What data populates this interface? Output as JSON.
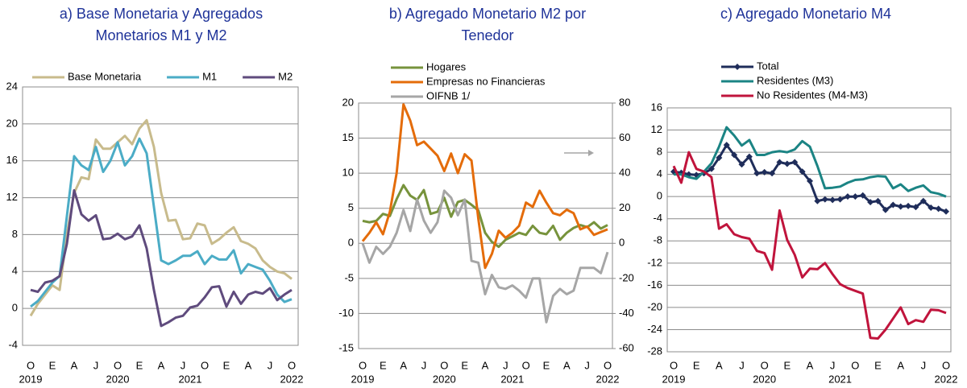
{
  "chart_data": [
    {
      "type": "line",
      "title": [
        "a) Base Monetaria y Agregados",
        "Monetarios M1 y M2"
      ],
      "categories": [
        "O",
        null,
        null,
        "E",
        null,
        null,
        "A",
        null,
        null,
        "J",
        null,
        null,
        "O",
        null,
        null,
        "E",
        null,
        null,
        "A",
        null,
        null,
        "J",
        null,
        null,
        "O",
        null,
        null,
        "E",
        null,
        null,
        "A",
        null,
        null,
        "J",
        null,
        null,
        "O"
      ],
      "years": [
        "2019",
        "2020",
        "2021",
        "2022"
      ],
      "ylim": [
        -4,
        24
      ],
      "yticks": [
        -4,
        0,
        4,
        8,
        12,
        16,
        20,
        24
      ],
      "grid": true,
      "legend": "top",
      "series": [
        {
          "name": "Base Monetaria",
          "color": "#c8bb8c",
          "values": [
            -0.8,
            0.5,
            1.5,
            2.5,
            2.0,
            8,
            12.5,
            14.2,
            14.0,
            18.3,
            17.3,
            17.3,
            18.0,
            18.7,
            17.8,
            19.5,
            20.4,
            17.5,
            12.5,
            9.5,
            9.6,
            7.5,
            7.6,
            9.2,
            9.0,
            7.0,
            7.5,
            8.2,
            8.8,
            7.3,
            7.0,
            6.5,
            5.2,
            4.5,
            4.0,
            3.8,
            3.2
          ]
        },
        {
          "name": "M1",
          "color": "#4bacc6",
          "values": [
            0.2,
            0.8,
            1.8,
            2.8,
            3.5,
            10,
            16.5,
            15.5,
            15,
            17.5,
            14.8,
            16,
            18,
            15.5,
            16.5,
            18.4,
            16.8,
            11,
            5.2,
            4.8,
            5.2,
            5.7,
            5.7,
            6.2,
            4.8,
            5.7,
            5.3,
            5.3,
            6.3,
            3.8,
            4.8,
            4.5,
            4.2,
            3.0,
            1.5,
            0.7,
            1.0
          ]
        },
        {
          "name": "M2",
          "color": "#5f4b7d",
          "values": [
            2.0,
            1.8,
            2.8,
            3.0,
            3.5,
            7,
            12.8,
            10.2,
            9.5,
            10.1,
            7.5,
            7.6,
            8.1,
            7.5,
            7.8,
            9.0,
            6.5,
            2.0,
            -1.9,
            -1.5,
            -1.0,
            -0.8,
            0.1,
            0.3,
            1.2,
            2.3,
            2.4,
            0.2,
            1.8,
            0.5,
            1.5,
            1.8,
            1.6,
            2.2,
            0.9,
            1.5,
            2.0
          ]
        }
      ]
    },
    {
      "type": "line",
      "title": [
        "b) Agregado Monetario M2 por",
        "Tenedor"
      ],
      "categories": [
        "O",
        null,
        null,
        "E",
        null,
        null,
        "A",
        null,
        null,
        "J",
        null,
        null,
        "O",
        null,
        null,
        "E",
        null,
        null,
        "A",
        null,
        null,
        "J",
        null,
        null,
        "O",
        null,
        null,
        "E",
        null,
        null,
        "A",
        null,
        null,
        "J",
        null,
        null,
        "O"
      ],
      "years": [
        "2019",
        "2020",
        "2021",
        "2022"
      ],
      "ylim": [
        -15,
        20
      ],
      "yticks": [
        -15,
        -10,
        -5,
        0,
        5,
        10,
        15,
        20
      ],
      "y2lim": [
        -60,
        80
      ],
      "y2ticks": [
        -60,
        -40,
        -20,
        0,
        20,
        40,
        60,
        80
      ],
      "grid": true,
      "legend": "top-left",
      "series": [
        {
          "name": "Hogares",
          "color": "#77933c",
          "values": [
            3.2,
            3.0,
            3.2,
            4.2,
            3.9,
            6.3,
            8.3,
            6.8,
            6.2,
            7.6,
            4.2,
            4.5,
            6.5,
            3.8,
            5.9,
            6.2,
            5.5,
            4.7,
            1.5,
            0.2,
            -0.5,
            0.5,
            1.0,
            1.5,
            1.2,
            2.5,
            1.5,
            1.3,
            2.5,
            0.5,
            1.5,
            2.2,
            2.6,
            2.3,
            3.0,
            2.1,
            2.6
          ]
        },
        {
          "name": "Empresas no Financieras",
          "color": "#e46c0a",
          "values": [
            0.3,
            1.5,
            3.0,
            1.3,
            4.5,
            10,
            19.8,
            17.5,
            14.0,
            14.5,
            13.5,
            12.5,
            10.3,
            12.8,
            10.0,
            12.7,
            11.8,
            3.5,
            -3.5,
            -1.5,
            1.8,
            0.8,
            1.5,
            2.5,
            5.8,
            5.2,
            7.5,
            5.8,
            4.3,
            4.0,
            4.8,
            4.3,
            2.0,
            2.4,
            1.2,
            1.6,
            2.0
          ]
        },
        {
          "name": "OIFNB 1/",
          "color": "#a6a6a6",
          "axis": "y2",
          "values": [
            0,
            -11,
            -2,
            -6,
            -2,
            6,
            19,
            7,
            25,
            13,
            6,
            12,
            30,
            26,
            16,
            25,
            -10,
            -11,
            -29,
            -18,
            -25,
            -26,
            -24,
            -27,
            -31,
            -20,
            -20,
            -45,
            -30,
            -26,
            -29,
            -27,
            -14,
            -14,
            -14,
            -17,
            -5
          ]
        }
      ]
    },
    {
      "type": "line",
      "title": [
        "c) Agregado Monetario M4"
      ],
      "categories": [
        "O",
        null,
        null,
        "E",
        null,
        null,
        "A",
        null,
        null,
        "J",
        null,
        null,
        "O",
        null,
        null,
        "E",
        null,
        null,
        "A",
        null,
        null,
        "J",
        null,
        null,
        "O",
        null,
        null,
        "E",
        null,
        null,
        "A",
        null,
        null,
        "J",
        null,
        null,
        "O"
      ],
      "years": [
        "2019",
        "2020",
        "2021",
        "2022"
      ],
      "ylim": [
        -28,
        16
      ],
      "yticks": [
        -28,
        -24,
        -20,
        -16,
        -12,
        -8,
        -4,
        0,
        4,
        8,
        12,
        16
      ],
      "grid": true,
      "legend": "top-left",
      "series": [
        {
          "name": "Total",
          "color": "#1f2d5a",
          "marker": "diamond",
          "values": [
            4.5,
            4.3,
            4.0,
            3.9,
            4.2,
            5.0,
            7.0,
            9.3,
            7.5,
            5.8,
            7.2,
            4.2,
            4.4,
            4.2,
            6.2,
            5.9,
            6.2,
            4.5,
            2.8,
            -0.8,
            -0.5,
            -0.6,
            -0.5,
            0,
            0,
            0.2,
            -1.0,
            -0.8,
            -2.4,
            -1.5,
            -1.8,
            -1.7,
            -1.9,
            -0.8,
            -2.0,
            -2.2,
            -2.7
          ]
        },
        {
          "name": "Residentes (M3)",
          "color": "#1b8484",
          "values": [
            4.0,
            4.0,
            3.5,
            3.2,
            4.5,
            6.0,
            9.0,
            12.5,
            11.0,
            9.2,
            10.2,
            7.5,
            7.5,
            8.0,
            8.2,
            8.0,
            8.5,
            10.0,
            9.0,
            5.5,
            1.5,
            1.6,
            1.8,
            2.5,
            3.0,
            3.1,
            3.5,
            3.7,
            3.6,
            1.5,
            2.2,
            1.0,
            1.6,
            2.0,
            0.8,
            0.5,
            0.0
          ]
        },
        {
          "name": "No Residentes (M4-M3)",
          "color": "#c0143c",
          "values": [
            5.5,
            2.5,
            8.0,
            5.0,
            4.5,
            3.5,
            -5.8,
            -5.0,
            -6.8,
            -7.3,
            -7.6,
            -9.8,
            -10.2,
            -13.2,
            -2.5,
            -7.8,
            -10.5,
            -14.6,
            -13,
            -13.1,
            -12,
            -14,
            -15.8,
            -16.5,
            -17,
            -17.5,
            -25.5,
            -25.6,
            -24,
            -22,
            -20,
            -23,
            -22.3,
            -22.6,
            -20.4,
            -20.5,
            -21
          ]
        }
      ]
    }
  ]
}
